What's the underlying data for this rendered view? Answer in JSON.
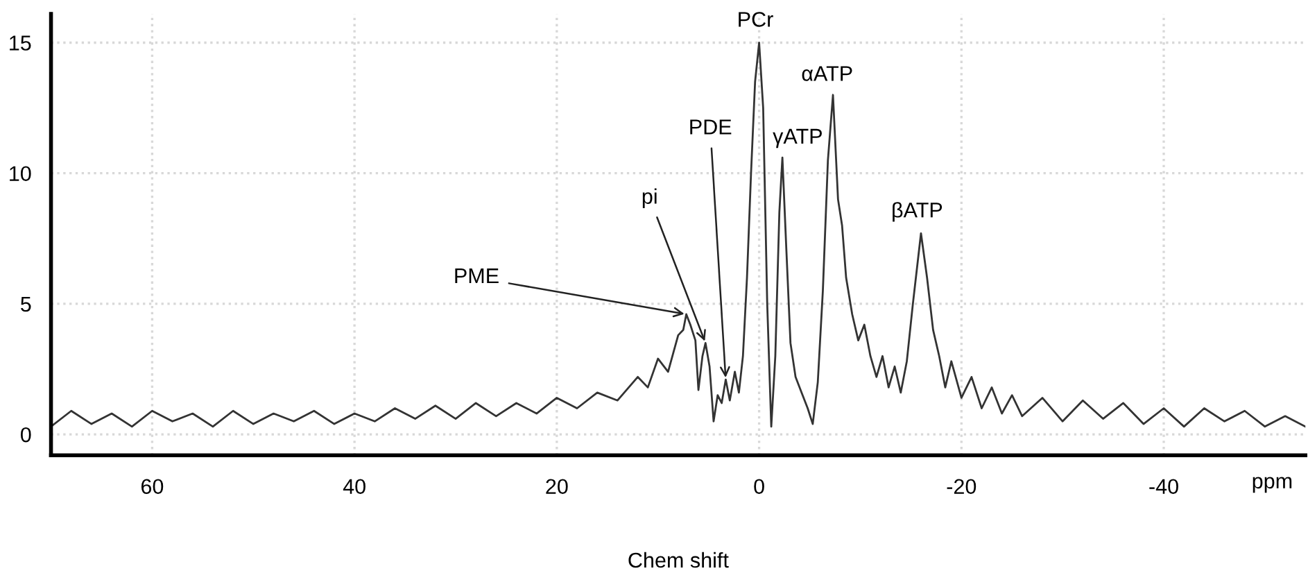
{
  "chart_data": {
    "type": "line",
    "xlabel": "Chem shift",
    "xlim": [
      70,
      -54
    ],
    "xticks": [
      60,
      40,
      20,
      0,
      -20,
      -40
    ],
    "ylim": [
      -0.8,
      16.1
    ],
    "yticks": [
      0,
      5,
      10,
      15
    ],
    "grid": true,
    "marker": "none",
    "line_style": "solid",
    "series": [
      {
        "color": "#333333",
        "x": [
          70,
          68,
          66,
          64,
          62,
          60,
          58,
          56,
          54,
          52,
          50,
          48,
          46,
          44,
          42,
          40,
          38,
          36,
          34,
          32,
          30,
          28,
          26,
          24,
          22,
          20,
          18,
          16,
          14,
          12,
          11,
          10,
          9,
          8,
          7.5,
          7.2,
          6.8,
          6.3,
          6.0,
          5.6,
          5.3,
          4.9,
          4.5,
          4.1,
          3.7,
          3.3,
          2.9,
          2.4,
          2.0,
          1.6,
          1.2,
          0.8,
          0.4,
          0.0,
          -0.4,
          -0.8,
          -1.2,
          -1.6,
          -2.0,
          -2.3,
          -2.7,
          -3.1,
          -3.6,
          -4.2,
          -4.8,
          -5.3,
          -5.8,
          -6.3,
          -6.8,
          -7.3,
          -7.8,
          -8.2,
          -8.6,
          -9.2,
          -9.8,
          -10.4,
          -11,
          -11.6,
          -12.2,
          -12.8,
          -13.4,
          -14,
          -14.6,
          -15.2,
          -16.0,
          -16.6,
          -17.2,
          -17.8,
          -18.4,
          -19,
          -20,
          -21,
          -22,
          -23,
          -24,
          -25,
          -26,
          -28,
          -30,
          -32,
          -34,
          -36,
          -38,
          -40,
          -42,
          -44,
          -46,
          -48,
          -50,
          -52,
          -54
        ],
        "values": [
          0.3,
          0.9,
          0.4,
          0.8,
          0.3,
          0.9,
          0.5,
          0.8,
          0.3,
          0.9,
          0.4,
          0.8,
          0.5,
          0.9,
          0.4,
          0.8,
          0.5,
          1.0,
          0.6,
          1.1,
          0.6,
          1.2,
          0.7,
          1.2,
          0.8,
          1.4,
          1.0,
          1.6,
          1.3,
          2.2,
          1.8,
          2.9,
          2.4,
          3.8,
          4.0,
          4.6,
          4.2,
          3.6,
          1.7,
          3.0,
          3.5,
          2.6,
          0.5,
          1.5,
          1.2,
          2.1,
          1.3,
          2.4,
          1.6,
          3.0,
          6.0,
          10.0,
          13.5,
          15.0,
          12.5,
          5.0,
          0.3,
          3.0,
          8.5,
          10.6,
          7.0,
          3.5,
          2.2,
          1.6,
          1.0,
          0.4,
          2.0,
          5.5,
          10.5,
          13.0,
          9.0,
          8.0,
          6.0,
          4.6,
          3.6,
          4.2,
          3.0,
          2.2,
          3.0,
          1.8,
          2.6,
          1.6,
          2.8,
          5.0,
          7.7,
          6.0,
          4.0,
          3.0,
          1.8,
          2.8,
          1.4,
          2.2,
          1.0,
          1.8,
          0.8,
          1.5,
          0.7,
          1.4,
          0.5,
          1.3,
          0.6,
          1.2,
          0.4,
          1.0,
          0.3,
          1.0,
          0.5,
          0.9,
          0.3,
          0.7,
          0.3
        ]
      }
    ],
    "annotations": [
      {
        "text": "PCr",
        "x": 0.0,
        "y": 15.0
      },
      {
        "text": "αATP",
        "x": -7.3,
        "y": 13.0
      },
      {
        "text": "γATP",
        "x": -2.3,
        "y": 10.6
      },
      {
        "text": "βATP",
        "x": -16.0,
        "y": 7.7
      },
      {
        "text": "PDE",
        "x": 3.3,
        "y": 2.1
      },
      {
        "text": "pi",
        "x": 5.3,
        "y": 3.5
      },
      {
        "text": "PME",
        "x": 7.2,
        "y": 4.6
      },
      "ppm"
    ]
  }
}
